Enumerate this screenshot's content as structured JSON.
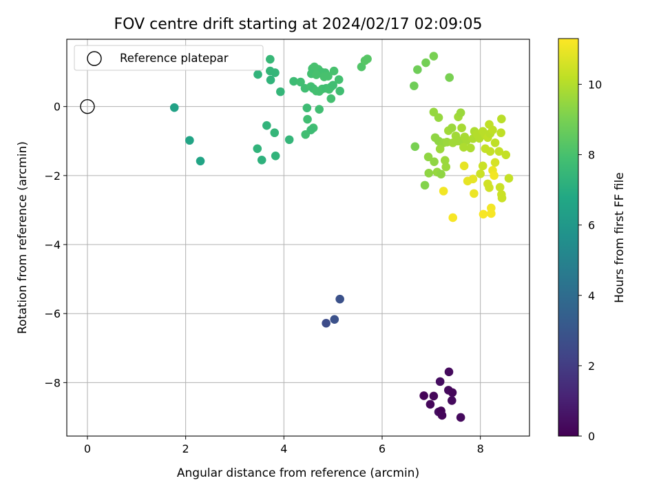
{
  "chart_data": {
    "type": "scatter",
    "title": "FOV centre drift starting at 2024/02/17 02:09:05",
    "xlabel": "Angular distance from reference (arcmin)",
    "ylabel": "Rotation from reference (arcmin)",
    "xlim": [
      -0.42,
      9.0
    ],
    "ylim": [
      -9.55,
      1.95
    ],
    "xticks": [
      0,
      2,
      4,
      6,
      8
    ],
    "yticks": [
      0,
      -2,
      -4,
      -6,
      -8
    ],
    "grid": true,
    "legend": {
      "placement": "top-left",
      "entries": [
        "Reference platepar"
      ]
    },
    "reference_point": {
      "x": 0,
      "y": 0
    },
    "colorbar": {
      "label": "Hours from first FF file",
      "colormap": "viridis",
      "range": [
        0,
        11.3
      ],
      "ticks": [
        0,
        2,
        4,
        6,
        8,
        10
      ]
    },
    "points": [
      [
        7.36,
        -7.69,
        0.3
      ],
      [
        7.18,
        -7.97,
        0.4
      ],
      [
        7.35,
        -8.22,
        0.3
      ],
      [
        7.43,
        -8.29,
        0.2
      ],
      [
        6.85,
        -8.38,
        0.1
      ],
      [
        7.05,
        -8.39,
        0.2
      ],
      [
        7.42,
        -8.52,
        0.3
      ],
      [
        6.98,
        -8.63,
        0.2
      ],
      [
        7.15,
        -8.85,
        0.4
      ],
      [
        7.2,
        -8.82,
        0.1
      ],
      [
        7.22,
        -8.95,
        0.2
      ],
      [
        7.6,
        -9.01,
        0.3
      ],
      [
        5.14,
        -5.58,
        2.8
      ],
      [
        5.03,
        -6.17,
        2.8
      ],
      [
        4.86,
        -6.28,
        2.6
      ],
      [
        1.77,
        -0.03,
        6.5
      ],
      [
        2.08,
        -0.98,
        6.6
      ],
      [
        2.3,
        -1.58,
        6.6
      ],
      [
        3.72,
        1.37,
        7.5
      ],
      [
        3.47,
        0.93,
        7.3
      ],
      [
        3.72,
        1.03,
        7.4
      ],
      [
        3.82,
        0.98,
        7.4
      ],
      [
        3.73,
        0.77,
        7.3
      ],
      [
        3.93,
        0.43,
        7.4
      ],
      [
        3.65,
        -0.55,
        7.3
      ],
      [
        3.81,
        -0.76,
        7.4
      ],
      [
        3.46,
        -1.22,
        7.3
      ],
      [
        3.55,
        -1.55,
        7.2
      ],
      [
        3.83,
        -1.43,
        7.3
      ],
      [
        4.11,
        -0.96,
        7.4
      ],
      [
        4.2,
        0.73,
        7.7
      ],
      [
        4.34,
        0.71,
        7.8
      ],
      [
        4.43,
        0.53,
        7.8
      ],
      [
        4.55,
        0.58,
        7.9
      ],
      [
        4.6,
        0.52,
        7.8
      ],
      [
        4.66,
        0.45,
        7.9
      ],
      [
        4.72,
        0.44,
        7.9
      ],
      [
        4.78,
        0.51,
        7.9
      ],
      [
        4.86,
        0.53,
        7.8
      ],
      [
        4.92,
        0.5,
        7.9
      ],
      [
        4.96,
        0.57,
        7.9
      ],
      [
        5.0,
        0.62,
        7.8
      ],
      [
        5.12,
        0.78,
        7.9
      ],
      [
        5.14,
        0.45,
        7.8
      ],
      [
        4.96,
        0.23,
        7.9
      ],
      [
        4.47,
        -0.04,
        7.7
      ],
      [
        4.72,
        -0.08,
        7.8
      ],
      [
        4.48,
        -0.37,
        7.8
      ],
      [
        4.6,
        -0.62,
        7.8
      ],
      [
        4.55,
        -0.68,
        7.7
      ],
      [
        4.44,
        -0.81,
        7.8
      ],
      [
        4.58,
        1.1,
        7.9
      ],
      [
        4.62,
        1.15,
        8.0
      ],
      [
        4.7,
        1.08,
        8.0
      ],
      [
        4.76,
        1.0,
        7.9
      ],
      [
        4.84,
        0.98,
        7.9
      ],
      [
        4.56,
        0.95,
        7.9
      ],
      [
        4.66,
        0.92,
        8.0
      ],
      [
        4.82,
        0.86,
        8.0
      ],
      [
        4.9,
        0.88,
        8.0
      ],
      [
        5.02,
        1.03,
        8.0
      ],
      [
        5.58,
        1.15,
        8.2
      ],
      [
        5.65,
        1.33,
        8.3
      ],
      [
        5.7,
        1.38,
        8.3
      ],
      [
        6.65,
        0.6,
        8.8
      ],
      [
        6.72,
        1.07,
        8.8
      ],
      [
        6.89,
        1.27,
        8.9
      ],
      [
        7.05,
        1.46,
        9.0
      ],
      [
        7.37,
        0.84,
        9.0
      ],
      [
        6.67,
        -1.16,
        9.0
      ],
      [
        6.87,
        -2.28,
        9.2
      ],
      [
        7.05,
        -0.16,
        9.5
      ],
      [
        7.15,
        -0.32,
        9.5
      ],
      [
        7.08,
        -0.9,
        9.4
      ],
      [
        7.15,
        -1.0,
        9.4
      ],
      [
        7.25,
        -1.05,
        9.5
      ],
      [
        7.18,
        -1.23,
        9.6
      ],
      [
        6.94,
        -1.46,
        9.4
      ],
      [
        7.06,
        -1.6,
        9.4
      ],
      [
        7.28,
        -1.56,
        9.6
      ],
      [
        7.3,
        -1.75,
        9.6
      ],
      [
        7.12,
        -1.9,
        9.5
      ],
      [
        6.95,
        -1.93,
        9.4
      ],
      [
        7.2,
        -1.96,
        9.4
      ],
      [
        7.32,
        -1.03,
        9.6
      ],
      [
        7.35,
        -0.7,
        9.7
      ],
      [
        7.42,
        -0.62,
        9.6
      ],
      [
        7.5,
        -0.85,
        9.7
      ],
      [
        7.55,
        -0.3,
        9.7
      ],
      [
        7.6,
        -0.18,
        9.6
      ],
      [
        7.58,
        -1.0,
        9.7
      ],
      [
        7.62,
        -0.62,
        9.8
      ],
      [
        7.68,
        -0.88,
        9.8
      ],
      [
        7.72,
        -0.98,
        9.8
      ],
      [
        7.66,
        -1.18,
        9.9
      ],
      [
        7.8,
        -1.2,
        9.9
      ],
      [
        7.85,
        -0.93,
        9.9
      ],
      [
        7.88,
        -0.72,
        9.9
      ],
      [
        7.93,
        -0.8,
        10.0
      ],
      [
        7.98,
        -0.92,
        10.0
      ],
      [
        7.44,
        -1.05,
        9.7
      ],
      [
        7.52,
        -1.0,
        9.7
      ],
      [
        8.05,
        -0.72,
        10.1
      ],
      [
        8.1,
        -0.82,
        10.1
      ],
      [
        8.15,
        -0.9,
        10.2
      ],
      [
        8.2,
        -0.78,
        10.1
      ],
      [
        8.25,
        -0.68,
        10.2
      ],
      [
        8.18,
        -0.52,
        10.2
      ],
      [
        8.3,
        -1.05,
        10.2
      ],
      [
        8.38,
        -1.3,
        10.3
      ],
      [
        8.1,
        -1.22,
        10.3
      ],
      [
        8.2,
        -1.3,
        10.3
      ],
      [
        8.43,
        -0.36,
        10.1
      ],
      [
        8.42,
        -0.76,
        10.2
      ],
      [
        8.52,
        -1.4,
        10.3
      ],
      [
        8.58,
        -2.08,
        10.3
      ],
      [
        8.0,
        -1.95,
        10.4
      ],
      [
        8.05,
        -1.72,
        10.4
      ],
      [
        8.4,
        -2.34,
        10.4
      ],
      [
        8.43,
        -2.55,
        10.4
      ],
      [
        8.44,
        -2.65,
        10.4
      ],
      [
        8.15,
        -2.24,
        10.5
      ],
      [
        8.18,
        -2.35,
        10.5
      ],
      [
        8.3,
        -1.62,
        10.6
      ],
      [
        7.67,
        -1.72,
        10.9
      ],
      [
        7.74,
        -2.16,
        10.9
      ],
      [
        7.85,
        -2.1,
        10.9
      ],
      [
        7.87,
        -2.52,
        11.0
      ],
      [
        8.25,
        -1.85,
        11.0
      ],
      [
        8.28,
        -2.0,
        11.1
      ],
      [
        8.22,
        -2.94,
        11.1
      ],
      [
        8.22,
        -3.1,
        11.2
      ],
      [
        8.06,
        -3.12,
        11.2
      ],
      [
        7.44,
        -3.22,
        11.2
      ],
      [
        7.25,
        -2.45,
        11.1
      ]
    ]
  }
}
